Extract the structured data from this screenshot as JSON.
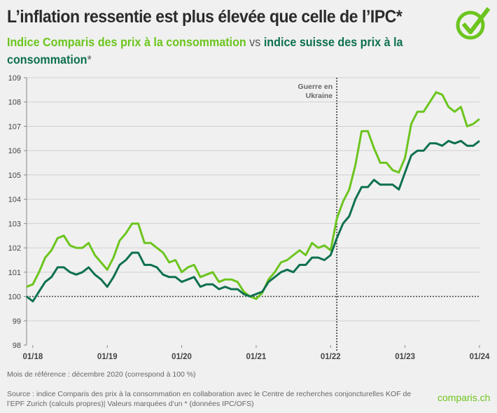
{
  "header": {
    "title": "L’inflation ressentie est plus élevée que celle de l’IPC*",
    "subtitle_a": "Indice Comparis des prix à la consommation",
    "subtitle_vs": " vs ",
    "subtitle_b": "indice suisse des prix à la consommation",
    "subtitle_b_suffix": "*",
    "logo_icon": "check-circle-icon"
  },
  "colors": {
    "comparis": "#6cc51e",
    "cpi": "#0e7050",
    "background": "#f0f0f0"
  },
  "chart_data": {
    "type": "line",
    "x": [
      "2017-12",
      "2018-01",
      "2018-02",
      "2018-03",
      "2018-04",
      "2018-05",
      "2018-06",
      "2018-07",
      "2018-08",
      "2018-09",
      "2018-10",
      "2018-11",
      "2018-12",
      "2019-01",
      "2019-02",
      "2019-03",
      "2019-04",
      "2019-05",
      "2019-06",
      "2019-07",
      "2019-08",
      "2019-09",
      "2019-10",
      "2019-11",
      "2019-12",
      "2020-01",
      "2020-02",
      "2020-03",
      "2020-04",
      "2020-05",
      "2020-06",
      "2020-07",
      "2020-08",
      "2020-09",
      "2020-10",
      "2020-11",
      "2020-12",
      "2021-01",
      "2021-02",
      "2021-03",
      "2021-04",
      "2021-05",
      "2021-06",
      "2021-07",
      "2021-08",
      "2021-09",
      "2021-10",
      "2021-11",
      "2021-12",
      "2022-01",
      "2022-02",
      "2022-03",
      "2022-04",
      "2022-05",
      "2022-06",
      "2022-07",
      "2022-08",
      "2022-09",
      "2022-10",
      "2022-11",
      "2022-12",
      "2023-01",
      "2023-02",
      "2023-03",
      "2023-04",
      "2023-05",
      "2023-06",
      "2023-07",
      "2023-08",
      "2023-09",
      "2023-10",
      "2023-11",
      "2023-12",
      "2024-01"
    ],
    "series": [
      {
        "key": "comparis",
        "values": [
          100.4,
          100.5,
          101.0,
          101.6,
          101.9,
          102.4,
          102.5,
          102.1,
          102.0,
          102.0,
          102.2,
          101.7,
          101.4,
          101.1,
          101.6,
          102.3,
          102.6,
          103.0,
          103.0,
          102.2,
          102.2,
          102.0,
          101.8,
          101.4,
          101.5,
          101.0,
          101.2,
          101.3,
          100.8,
          100.9,
          101.0,
          100.6,
          100.7,
          100.7,
          100.6,
          100.2,
          100.0,
          99.9,
          100.15,
          100.7,
          101.0,
          101.4,
          101.5,
          101.7,
          101.9,
          101.7,
          102.2,
          102.0,
          102.1,
          101.9,
          103.2,
          103.9,
          104.4,
          105.4,
          106.8,
          106.8,
          106.1,
          105.5,
          105.5,
          105.2,
          105.1,
          105.7,
          107.1,
          107.6,
          107.6,
          108.0,
          108.4,
          108.3,
          107.8,
          107.6,
          107.8,
          107.0,
          107.1,
          107.3
        ]
      },
      {
        "key": "cpi",
        "values": [
          100.0,
          99.8,
          100.2,
          100.6,
          100.8,
          101.2,
          101.2,
          101.0,
          100.9,
          101.0,
          101.2,
          100.9,
          100.7,
          100.4,
          100.8,
          101.3,
          101.5,
          101.8,
          101.8,
          101.3,
          101.3,
          101.2,
          100.9,
          100.8,
          100.8,
          100.6,
          100.7,
          100.8,
          100.4,
          100.5,
          100.5,
          100.3,
          100.4,
          100.3,
          100.3,
          100.1,
          100.0,
          100.1,
          100.2,
          100.6,
          100.8,
          101.0,
          101.1,
          101.0,
          101.3,
          101.3,
          101.6,
          101.6,
          101.5,
          101.7,
          102.4,
          103.0,
          103.3,
          104.0,
          104.5,
          104.5,
          104.8,
          104.6,
          104.6,
          104.6,
          104.4,
          105.1,
          105.8,
          106.0,
          106.0,
          106.3,
          106.3,
          106.2,
          106.4,
          106.3,
          106.4,
          106.2,
          106.2,
          106.4
        ]
      }
    ],
    "ylim": [
      98,
      109
    ],
    "yticks": [
      "98",
      "99",
      "100",
      "101",
      "102",
      "103",
      "104",
      "105",
      "106",
      "107",
      "108",
      "109"
    ],
    "xtick_labels": [
      "01/18",
      "01/19",
      "01/20",
      "01/21",
      "01/22",
      "01/23",
      "01/24"
    ],
    "xtick_dates": [
      "2018-01",
      "2019-01",
      "2020-01",
      "2021-01",
      "2022-01",
      "2023-01",
      "2024-01"
    ],
    "reference_line": 100,
    "grid": true,
    "annotation": {
      "date": "2022-02",
      "line1": "Guerre en",
      "line2": "Ukraine"
    }
  },
  "footer": {
    "note": "Mois de référence : décembre 2020 (correspond à 100 %)",
    "source": "Source : indice Comparis des prix à la consommation en collaboration avec le Centre de recherches conjoncturelles KOF de l’EPF Zurich (calculs propres)| Valeurs marquées d’un * (données IPC/OFS)",
    "brand": "comparis.ch"
  }
}
